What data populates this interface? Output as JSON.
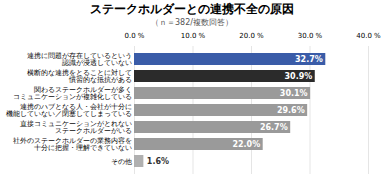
{
  "chart_data": {
    "type": "bar",
    "orientation": "horizontal",
    "title": "ステークホルダーとの連携不全の原因",
    "subtitle": "（ｎ＝382/複数回答）",
    "categories": [
      "連携に問題が存在しているという\n認識が浸透していない",
      "横断的な連携をとることに対して\n慣習的な抵抗がある",
      "関わるステークホルダーが多く\nコミュニケーションが複雑化している",
      "連携のハブとなる人・会社が十分に\n機能していない／閉塞してしまっている",
      "直接コミュニケーションがとれない\nステークホルダーがいる",
      "社外のステークホルダーの業務内容を\n十分に把握・理解できていない",
      "その他"
    ],
    "values": [
      32.7,
      30.9,
      30.1,
      29.6,
      26.7,
      22.0,
      1.6
    ],
    "value_labels": [
      "32.7%",
      "30.9%",
      "30.1%",
      "29.6%",
      "26.7%",
      "22.0%",
      "1.6%"
    ],
    "colors": [
      "#3a5ca8",
      "#2b2b2b",
      "#9a9a9a",
      "#9a9a9a",
      "#9a9a9a",
      "#9a9a9a",
      "#b0b0b0"
    ],
    "xlim": [
      0,
      40
    ],
    "xticks": [
      {
        "value": 0,
        "label": "0.0 %"
      },
      {
        "value": 10,
        "label": "10.0 %"
      },
      {
        "value": 20,
        "label": "20.0 %"
      },
      {
        "value": 30,
        "label": "30.0 %"
      },
      {
        "value": 40,
        "label": "40.0 %"
      }
    ],
    "grid": true,
    "data_labels": true
  }
}
